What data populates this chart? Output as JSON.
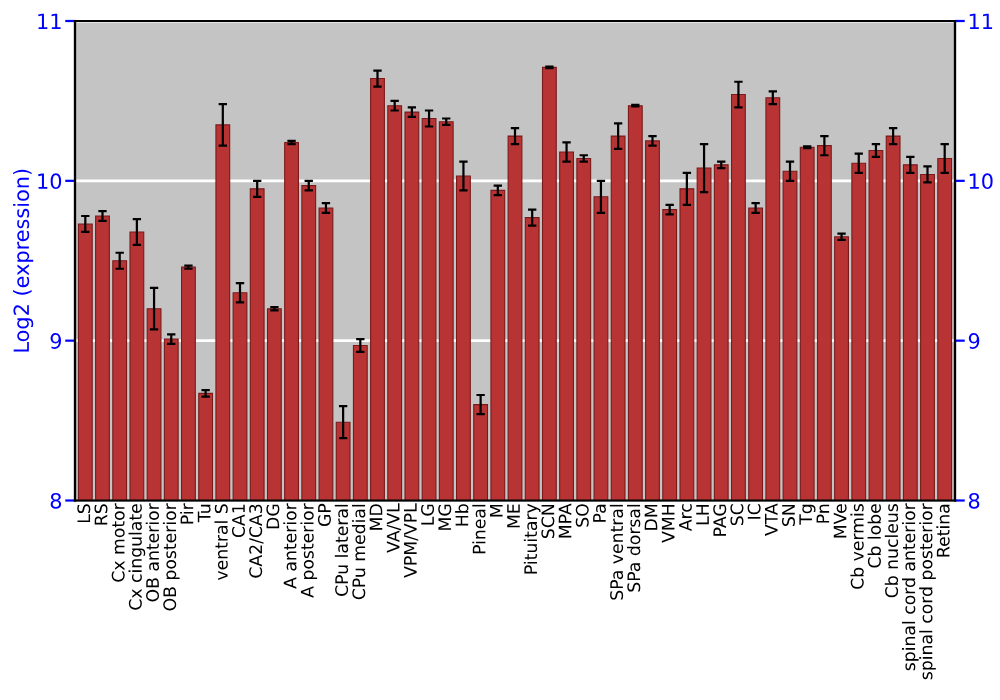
{
  "chart_data": {
    "type": "bar",
    "ylabel": "Log2 (expression)",
    "categories": [
      "LS",
      "RS",
      "Cx motor",
      "Cx cingulate",
      "OB anterior",
      "OB posterior",
      "Pir",
      "Tu",
      "ventral S",
      "CA1",
      "CA2/CA3",
      "DG",
      "A anterior",
      "A posterior",
      "GP",
      "CPu lateral",
      "CPu medial",
      "MD",
      "VA/VL",
      "VPM/VPL",
      "LG",
      "MG",
      "Hb",
      "Pineal",
      "M",
      "ME",
      "Pituitary",
      "SCN",
      "MPA",
      "SO",
      "Pa",
      "SPa ventral",
      "SPa dorsal",
      "DM",
      "VMH",
      "Arc",
      "LH",
      "PAG",
      "SC",
      "IC",
      "VTA",
      "SN",
      "Tg",
      "Pn",
      "MVe",
      "Cb vermis",
      "Cb lobe",
      "Cb nucleus",
      "spinal cord anterior",
      "spinal cord posterior",
      "Retina"
    ],
    "values": [
      9.73,
      9.78,
      9.5,
      9.68,
      9.2,
      9.01,
      9.46,
      8.67,
      10.35,
      9.3,
      9.95,
      9.2,
      10.24,
      9.97,
      9.83,
      8.49,
      8.97,
      10.64,
      10.47,
      10.43,
      10.39,
      10.37,
      10.03,
      8.6,
      9.94,
      10.28,
      9.77,
      10.71,
      10.18,
      10.14,
      9.9,
      10.28,
      10.47,
      10.25,
      9.82,
      9.95,
      10.08,
      10.1,
      10.54,
      9.83,
      10.52,
      10.06,
      10.21,
      10.22,
      9.65,
      10.11,
      10.19,
      10.28,
      10.1,
      10.04,
      10.14
    ],
    "errors": [
      0.05,
      0.03,
      0.05,
      0.08,
      0.13,
      0.03,
      0.01,
      0.02,
      0.13,
      0.06,
      0.05,
      0.01,
      0.01,
      0.03,
      0.03,
      0.1,
      0.04,
      0.05,
      0.03,
      0.03,
      0.05,
      0.02,
      0.09,
      0.06,
      0.03,
      0.05,
      0.05,
      0.005,
      0.06,
      0.02,
      0.1,
      0.08,
      0.005,
      0.03,
      0.03,
      0.1,
      0.15,
      0.02,
      0.08,
      0.03,
      0.04,
      0.06,
      0.005,
      0.06,
      0.02,
      0.06,
      0.04,
      0.05,
      0.05,
      0.05,
      0.09
    ],
    "color": "#b83434",
    "ylim": [
      8,
      11
    ],
    "yticks": [
      8,
      9,
      10,
      11
    ],
    "y2lim": [
      8,
      11
    ],
    "y2ticks": [
      8,
      9,
      10,
      11
    ],
    "grid": "y"
  }
}
